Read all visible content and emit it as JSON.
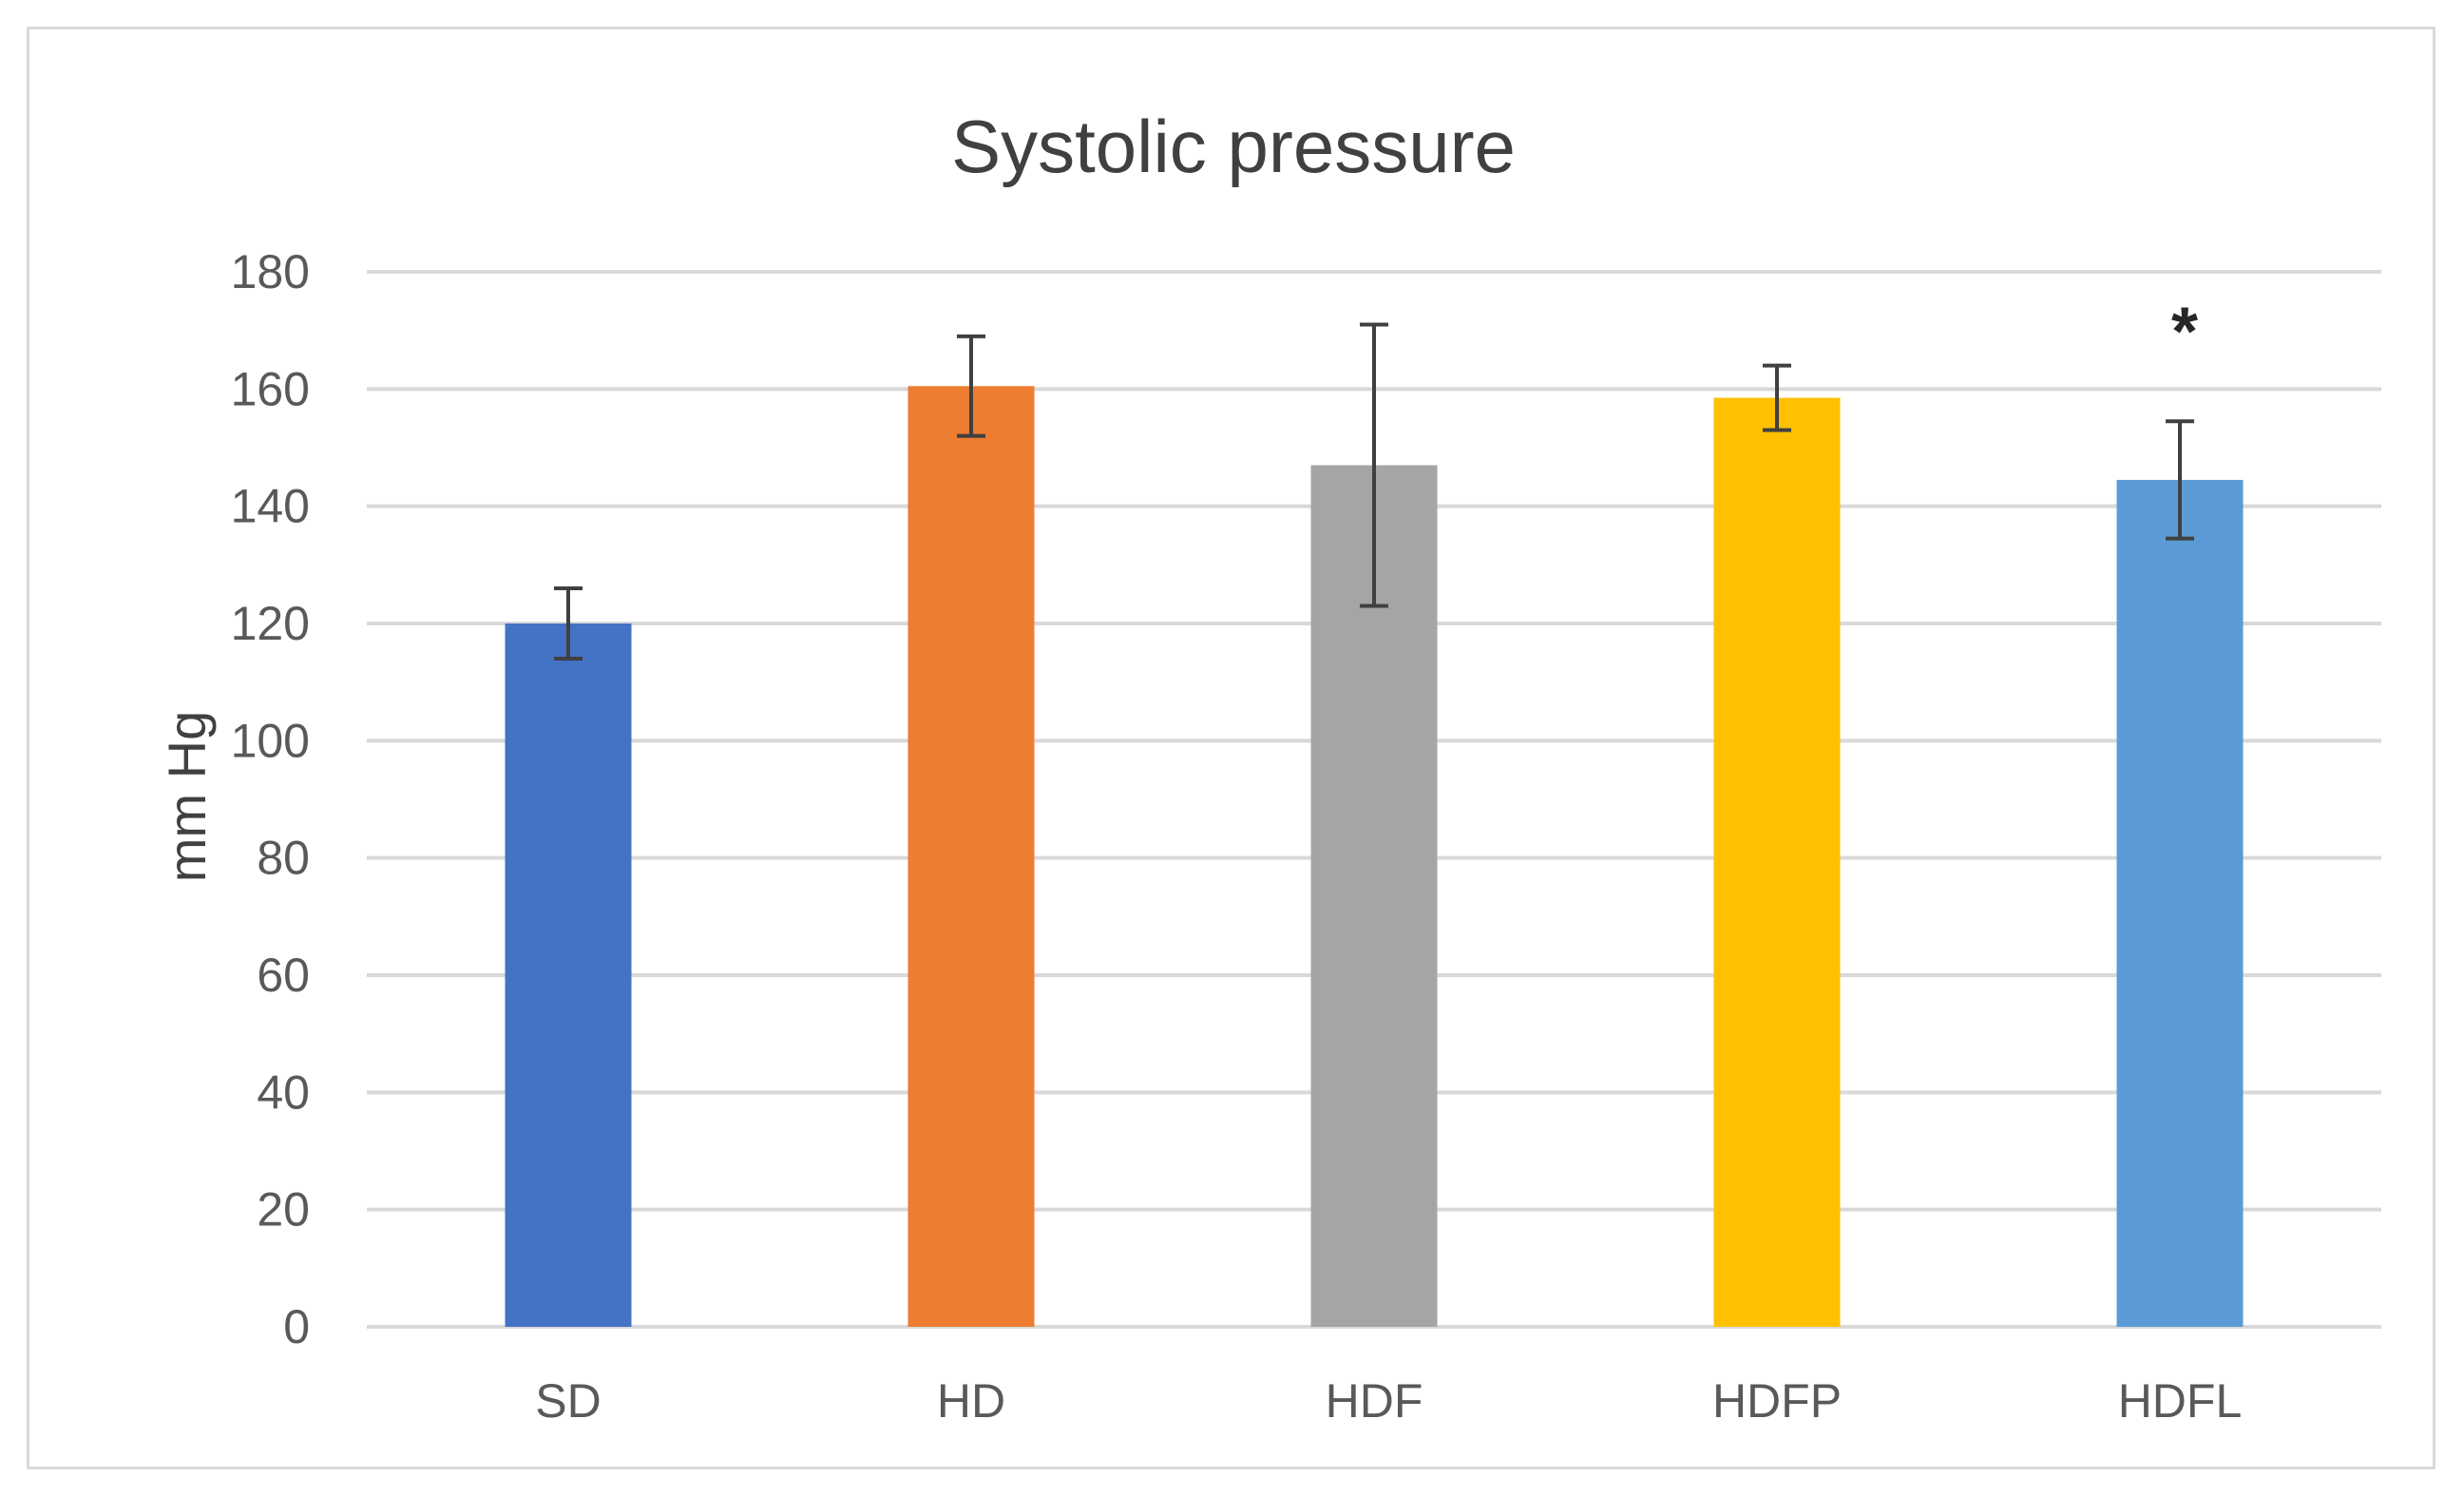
{
  "chart_data": {
    "type": "bar",
    "title": "Systolic pressure",
    "xlabel": "",
    "ylabel": "mm Hg",
    "ylim": [
      0,
      180
    ],
    "yticks": [
      0,
      20,
      40,
      60,
      80,
      100,
      120,
      140,
      160,
      180
    ],
    "grid": true,
    "legend": "none",
    "categories": [
      "SD",
      "HD",
      "HDF",
      "HDFP",
      "HDFL"
    ],
    "values": [
      120,
      160.5,
      147,
      158.5,
      144.5
    ],
    "error": [
      6,
      8.5,
      24,
      5.5,
      10
    ],
    "colors": [
      "#4472c4",
      "#ed7d31",
      "#a5a5a5",
      "#ffc000",
      "#5b9bd5"
    ],
    "annotations": [
      {
        "category": "HDFL",
        "text": "*"
      }
    ]
  }
}
